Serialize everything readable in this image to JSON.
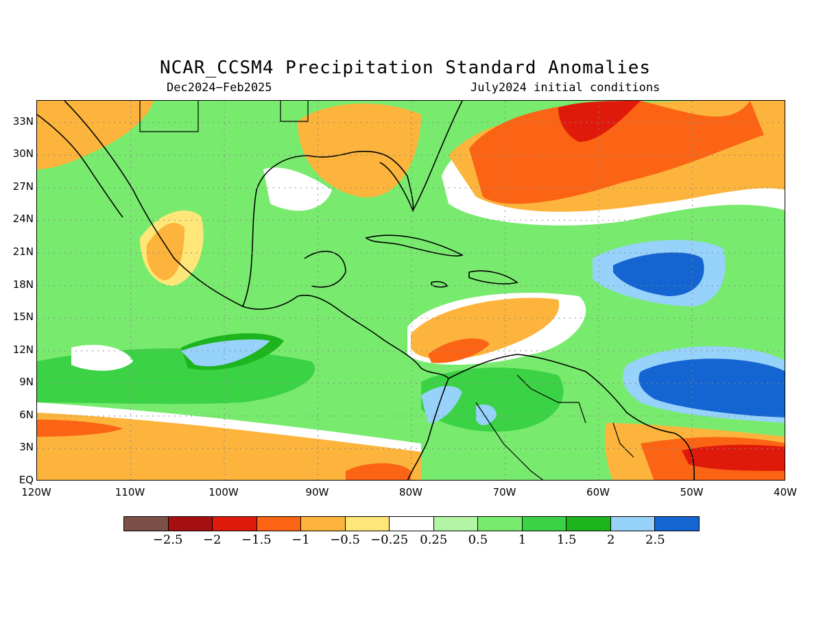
{
  "title": "NCAR_CCSM4 Precipitation Standard Anomalies",
  "subtitle_left": "Dec2024−Feb2025",
  "subtitle_right": "July2024 initial conditions",
  "map": {
    "lon_range": [
      -120,
      -40
    ],
    "lat_range": [
      0,
      35
    ],
    "lat_labels": [
      "33N",
      "30N",
      "27N",
      "24N",
      "21N",
      "18N",
      "15N",
      "12N",
      "9N",
      "6N",
      "3N",
      "EQ"
    ],
    "lon_labels": [
      "120W",
      "110W",
      "100W",
      "90W",
      "80W",
      "70W",
      "60W",
      "50W",
      "40W"
    ],
    "gridlines": "dotted"
  },
  "colorbar": {
    "colors": [
      "#7a5047",
      "#a50f0f",
      "#e01a0a",
      "#fa6414",
      "#fcb43c",
      "#ffe678",
      "#ffffff",
      "#b4f5a5",
      "#78eb6e",
      "#3cd246",
      "#1eb41e",
      "#96d2fa",
      "#1464d2"
    ],
    "labels": [
      "−2.5",
      "−2",
      "−1.5",
      "−1",
      "−0.5",
      "−0.25",
      "0.25",
      "0.5",
      "1",
      "1.5",
      "2",
      "2.5"
    ]
  },
  "palette": {
    "orange_light": "#fcb43c",
    "orange": "#fa6414",
    "red": "#e01a0a",
    "yellow": "#ffe678",
    "green_pale": "#b4f5a5",
    "green_light": "#78eb6e",
    "green": "#3cd246",
    "green_dark": "#1eb41e",
    "blue_light": "#96d2fa",
    "blue": "#1464d2"
  }
}
